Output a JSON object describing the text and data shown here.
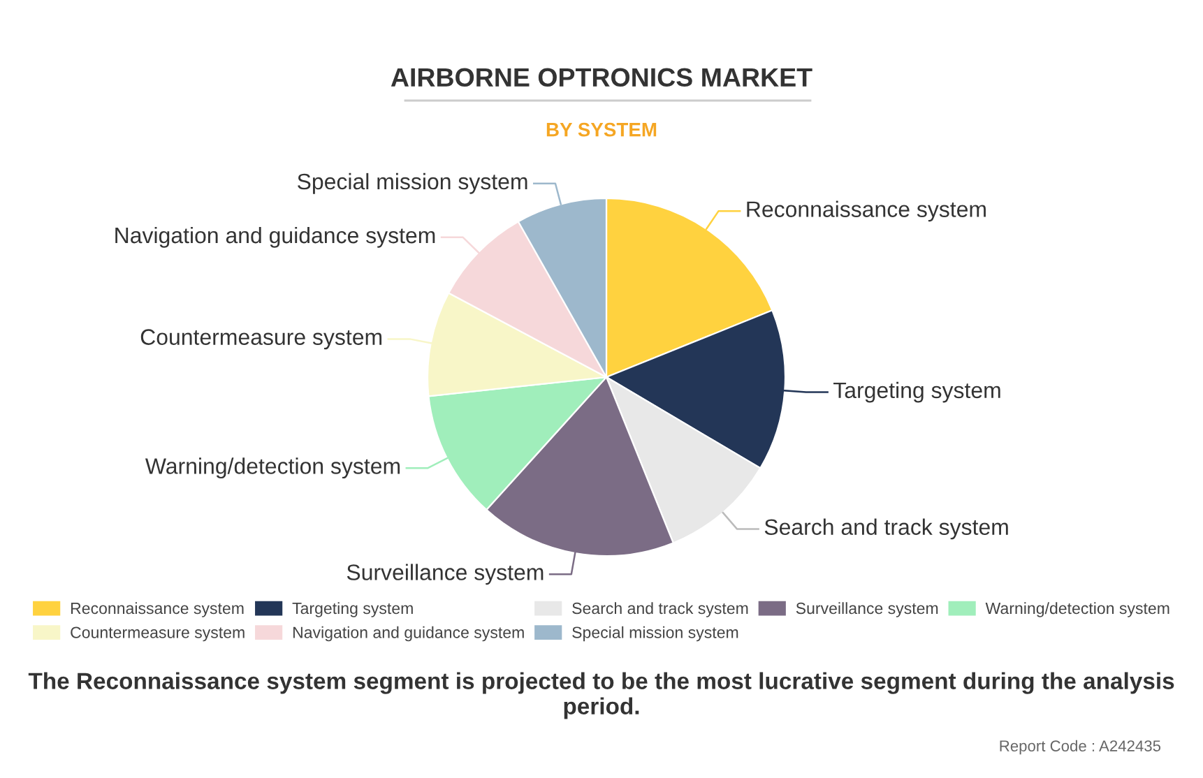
{
  "chart_data": {
    "type": "pie",
    "title": "AIRBORNE OPTRONICS MARKET",
    "subtitle": "BY SYSTEM",
    "categories": [
      "Reconnaissance system",
      "Targeting system",
      "Search and track system",
      "Surveillance system",
      "Warning/detection system",
      "Countermeasure system",
      "Navigation and guidance system",
      "Special mission system"
    ],
    "values": [
      18.9,
      14.6,
      10.4,
      17.8,
      11.6,
      9.5,
      9.0,
      8.2
    ],
    "colors": [
      "#ffd23f",
      "#233657",
      "#e8e8e8",
      "#7b6c85",
      "#a0eebb",
      "#f8f6c8",
      "#f6d8da",
      "#9db8cc"
    ],
    "legend": "bottom",
    "annotations": [
      "The Reconnaissance system segment is projected to be the most lucrative segment during the analysis period.",
      "Report Code : A242435"
    ]
  }
}
